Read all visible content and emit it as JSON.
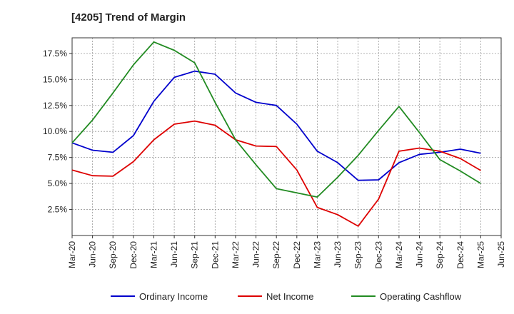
{
  "chart_data": {
    "type": "line",
    "title": "[4205]  Trend of Margin",
    "xlabel": "",
    "ylabel": "",
    "ylim": [
      0,
      19
    ],
    "grid": true,
    "legend_position": "bottom",
    "x": [
      "Mar-20",
      "Jun-20",
      "Sep-20",
      "Dec-20",
      "Mar-21",
      "Jun-21",
      "Sep-21",
      "Dec-21",
      "Mar-22",
      "Jun-22",
      "Sep-22",
      "Dec-22",
      "Mar-23",
      "Jun-23",
      "Sep-23",
      "Dec-23",
      "Mar-24",
      "Jun-24",
      "Sep-24",
      "Dec-24",
      "Mar-25",
      "Jun-25"
    ],
    "y_ticks": [
      {
        "value": 2.5,
        "label": "2.5%"
      },
      {
        "value": 5.0,
        "label": "5.0%"
      },
      {
        "value": 7.5,
        "label": "7.5%"
      },
      {
        "value": 10.0,
        "label": "10.0%"
      },
      {
        "value": 12.5,
        "label": "12.5%"
      },
      {
        "value": 15.0,
        "label": "15.0%"
      },
      {
        "value": 17.5,
        "label": "17.5%"
      }
    ],
    "series": [
      {
        "name": "Ordinary Income",
        "color": "#0000cc",
        "values": [
          8.9,
          8.2,
          8.0,
          9.6,
          12.9,
          15.2,
          15.8,
          15.5,
          13.7,
          12.8,
          12.5,
          10.7,
          8.1,
          7.0,
          5.3,
          5.35,
          7.0,
          7.8,
          8.0,
          8.3,
          7.9,
          null
        ]
      },
      {
        "name": "Net Income",
        "color": "#dd0000",
        "values": [
          6.3,
          5.75,
          5.7,
          7.1,
          9.2,
          10.7,
          11.0,
          10.6,
          9.2,
          8.6,
          8.55,
          6.3,
          2.7,
          2.0,
          0.9,
          3.5,
          8.1,
          8.4,
          8.1,
          7.4,
          6.25,
          null
        ]
      },
      {
        "name": "Operating Cashflow",
        "color": "#228b22",
        "values": [
          8.9,
          11.1,
          13.7,
          16.4,
          18.6,
          17.8,
          16.6,
          12.8,
          9.2,
          6.8,
          4.5,
          4.1,
          3.7,
          5.6,
          7.7,
          10.1,
          12.4,
          9.9,
          7.3,
          6.2,
          5.0,
          null
        ]
      }
    ]
  }
}
